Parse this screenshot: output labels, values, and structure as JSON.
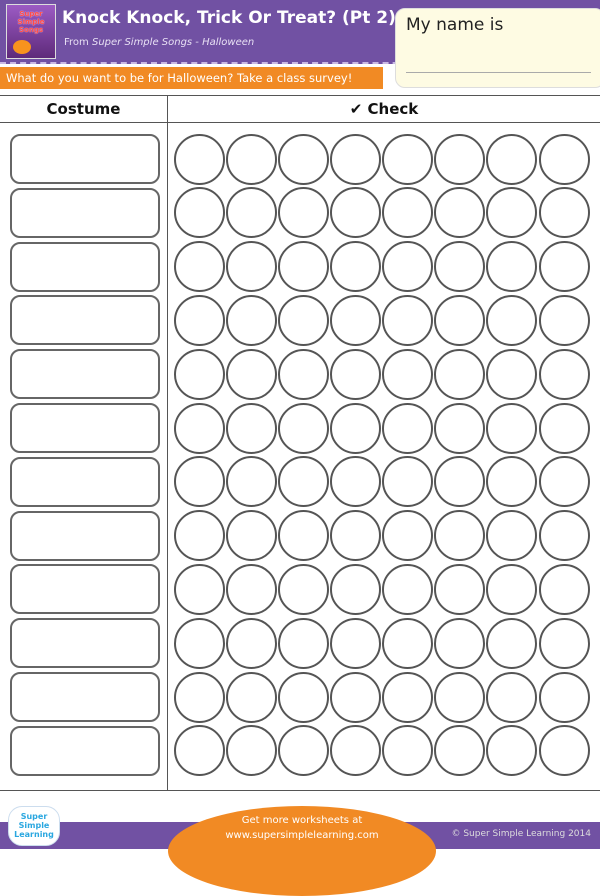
{
  "header": {
    "title": "Knock Knock, Trick Or Treat? (Pt 2)",
    "subtitle_prefix": "From ",
    "subtitle_source": "Super Simple Songs - Halloween",
    "cover_text": "Super Simple Songs",
    "instruction": "What do you want to be for Halloween? Take a class survey!"
  },
  "name_box": {
    "label": "My name is"
  },
  "table": {
    "col_costume": "Costume",
    "col_check": "Check",
    "check_icon": "✔",
    "rows": 12,
    "circles_per_row": 8
  },
  "footer": {
    "line1": "Get more worksheets at",
    "line2": "www.supersimplelearning.com",
    "copyright": "© Super Simple Learning 2014",
    "logo_text": "Super Simple Learning"
  },
  "colors": {
    "purple": "#7151a3",
    "orange": "#f18a24",
    "name_box": "#fefbe3"
  }
}
